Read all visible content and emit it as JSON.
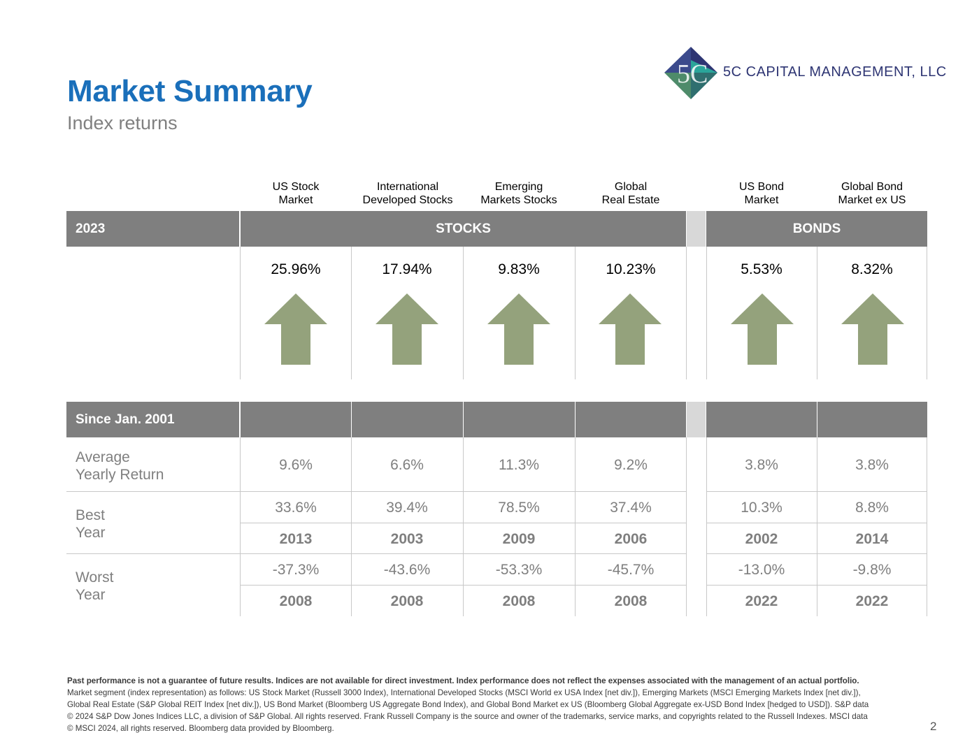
{
  "header": {
    "title": "Market Summary",
    "subtitle": "Index returns"
  },
  "logo": {
    "company": "5C CAPITAL MANAGEMENT, LLC",
    "mark": "5C",
    "colors": {
      "navy": "#2e3573",
      "teal": "#2aa59a",
      "green": "#4e8b6a"
    }
  },
  "columns": [
    {
      "line1": "US Stock",
      "line2": "Market"
    },
    {
      "line1": "International",
      "line2": "Developed Stocks"
    },
    {
      "line1": "Emerging",
      "line2": "Markets Stocks"
    },
    {
      "line1": "Global",
      "line2": "Real Estate"
    },
    {
      "line1": "US Bond",
      "line2": "Market"
    },
    {
      "line1": "Global Bond",
      "line2": "Market ex US"
    }
  ],
  "year_band": {
    "year": "2023",
    "stocks_label": "STOCKS",
    "bonds_label": "BONDS"
  },
  "returns_2023": [
    "25.96%",
    "17.94%",
    "9.83%",
    "10.23%",
    "5.53%",
    "8.32%"
  ],
  "arrows": {
    "direction": "up",
    "icon": "arrow-up-icon",
    "color": "#94a27c"
  },
  "since_band": {
    "label": "Since Jan. 2001"
  },
  "rows": {
    "average": {
      "label_line1": "Average",
      "label_line2": "Yearly Return",
      "values": [
        "9.6%",
        "6.6%",
        "11.3%",
        "9.2%",
        "3.8%",
        "3.8%"
      ]
    },
    "best": {
      "label_line1": "Best",
      "label_line2": "Year",
      "values": [
        "33.6%",
        "39.4%",
        "78.5%",
        "37.4%",
        "10.3%",
        "8.8%"
      ],
      "years": [
        "2013",
        "2003",
        "2009",
        "2006",
        "2002",
        "2014"
      ]
    },
    "worst": {
      "label_line1": "Worst",
      "label_line2": "Year",
      "values": [
        "-37.3%",
        "-43.6%",
        "-53.3%",
        "-45.7%",
        "-13.0%",
        "-9.8%"
      ],
      "years": [
        "2008",
        "2008",
        "2008",
        "2008",
        "2022",
        "2022"
      ]
    }
  },
  "footer": {
    "disclaimer_bold": "Past performance is not a guarantee of future results. Indices are not available for direct investment. Index performance does not reflect the expenses associated with the management of an actual portfolio.",
    "line1": "Market segment (index representation) as follows: US Stock Market (Russell 3000 Index), International Developed Stocks (MSCI World ex USA Index [net div.]), Emerging Markets (MSCI Emerging Markets Index [net div.]),",
    "line2": "Global Real Estate (S&P Global REIT Index [net div.]), US Bond Market (Bloomberg US Aggregate Bond Index), and Global Bond Market ex US (Bloomberg Global Aggregate ex-USD Bond Index [hedged to USD]). S&P data",
    "line3": "© 2024 S&P Dow Jones Indices LLC, a division of S&P Global. All rights reserved. Frank Russell Company is the source and owner of the trademarks, service marks, and copyrights related to the Russell Indexes. MSCI data",
    "line4": "© MSCI 2024, all rights reserved. Bloomberg data provided by Bloomberg.",
    "page_number": "2"
  }
}
